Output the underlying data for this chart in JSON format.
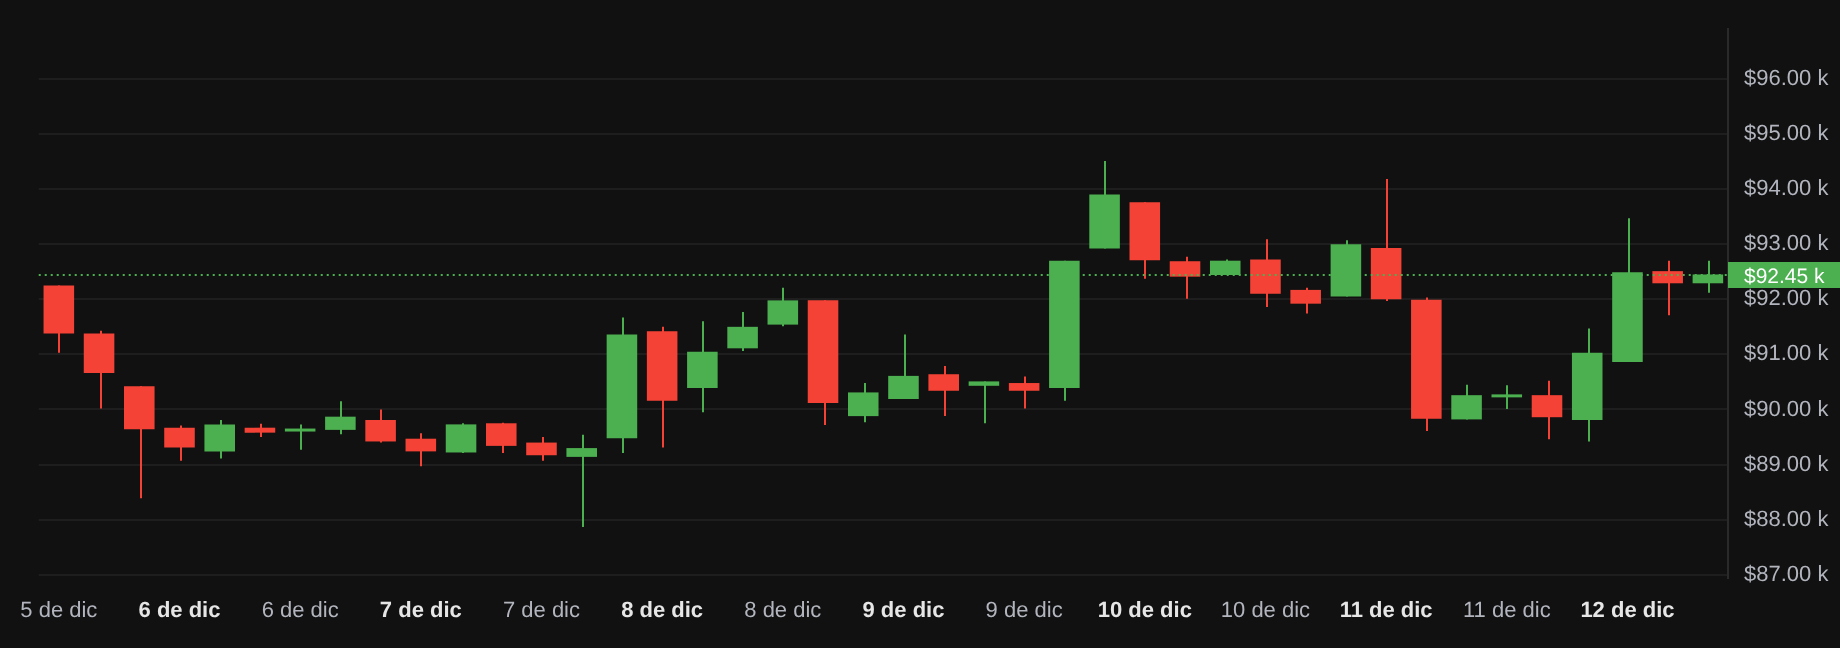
{
  "chart_data": {
    "type": "candlestick",
    "categories": [
      "5 de dic",
      null,
      null,
      "6 de dic",
      null,
      null,
      "6 de dic",
      null,
      null,
      "7 de dic",
      null,
      null,
      "7 de dic",
      null,
      null,
      "8 de dic",
      null,
      null,
      "8 de dic",
      null,
      null,
      "9 de dic",
      null,
      null,
      "9 de dic",
      null,
      null,
      "10 de dic",
      null,
      null,
      "10 de dic",
      null,
      null,
      "11 de dic",
      null,
      null,
      "11 de dic",
      null,
      null,
      "12 de dic",
      null,
      null
    ],
    "ohlc": [
      [
        92.25,
        92.25,
        91.03,
        91.38
      ],
      [
        91.38,
        91.43,
        90.02,
        90.66
      ],
      [
        90.42,
        90.42,
        88.39,
        89.64
      ],
      [
        89.67,
        89.71,
        89.07,
        89.31
      ],
      [
        89.24,
        89.81,
        89.11,
        89.73
      ],
      [
        89.67,
        89.74,
        89.5,
        89.58
      ],
      [
        89.6,
        89.73,
        89.27,
        89.64
      ],
      [
        89.63,
        90.15,
        89.55,
        89.87
      ],
      [
        89.81,
        90.0,
        89.4,
        89.42
      ],
      [
        89.47,
        89.57,
        88.97,
        89.24
      ],
      [
        89.22,
        89.75,
        89.21,
        89.73
      ],
      [
        89.75,
        89.76,
        89.21,
        89.34
      ],
      [
        89.4,
        89.5,
        89.07,
        89.17
      ],
      [
        89.14,
        89.54,
        87.87,
        89.3
      ],
      [
        89.48,
        91.67,
        89.21,
        91.36
      ],
      [
        91.42,
        91.5,
        89.31,
        90.16
      ],
      [
        90.39,
        91.6,
        89.95,
        91.05
      ],
      [
        91.11,
        91.77,
        91.06,
        91.5
      ],
      [
        91.54,
        92.21,
        91.51,
        91.98
      ],
      [
        91.98,
        91.98,
        89.72,
        90.12
      ],
      [
        89.88,
        90.48,
        89.77,
        90.31
      ],
      [
        90.19,
        91.36,
        90.19,
        90.61
      ],
      [
        90.64,
        90.79,
        89.88,
        90.34
      ],
      [
        90.43,
        90.51,
        89.75,
        90.51
      ],
      [
        90.48,
        90.6,
        90.02,
        90.34
      ],
      [
        90.39,
        92.7,
        90.16,
        92.7
      ],
      [
        92.92,
        94.51,
        92.92,
        93.9
      ],
      [
        93.76,
        93.76,
        92.37,
        92.71
      ],
      [
        92.69,
        92.77,
        92.01,
        92.41
      ],
      [
        92.44,
        92.72,
        92.44,
        92.7
      ],
      [
        92.72,
        93.09,
        91.86,
        92.1
      ],
      [
        92.17,
        92.21,
        91.74,
        91.92
      ],
      [
        92.05,
        93.07,
        92.05,
        93.0
      ],
      [
        92.93,
        94.18,
        91.97,
        92.0
      ],
      [
        91.99,
        92.03,
        89.61,
        89.83
      ],
      [
        89.82,
        90.45,
        89.82,
        90.26
      ],
      [
        90.22,
        90.44,
        90.01,
        90.27
      ],
      [
        90.26,
        90.52,
        89.46,
        89.86
      ],
      [
        89.81,
        91.47,
        89.42,
        91.03
      ],
      [
        90.86,
        93.47,
        90.86,
        92.49
      ],
      [
        92.51,
        92.7,
        91.71,
        92.29
      ],
      [
        92.29,
        92.7,
        92.12,
        92.45
      ]
    ],
    "colors": [
      "#f44336",
      "#f44336",
      "#f44336",
      "#f44336",
      "#4caf50",
      "#f44336",
      "#4caf50",
      "#4caf50",
      "#f44336",
      "#f44336",
      "#4caf50",
      "#f44336",
      "#f44336",
      "#4caf50",
      "#4caf50",
      "#f44336",
      "#4caf50",
      "#4caf50",
      "#4caf50",
      "#f44336",
      "#4caf50",
      "#4caf50",
      "#f44336",
      "#4caf50",
      "#f44336",
      "#4caf50",
      "#4caf50",
      "#f44336",
      "#f44336",
      "#4caf50",
      "#f44336",
      "#f44336",
      "#4caf50",
      "#f44336",
      "#f44336",
      "#4caf50",
      "#4caf50",
      "#f44336",
      "#4caf50",
      "#4caf50",
      "#f44336",
      "#4caf50"
    ],
    "ylim": [
      86.95,
      96.9
    ],
    "yticks": [
      {
        "value": 87,
        "label": "$87.00 k"
      },
      {
        "value": 88,
        "label": "$88.00 k"
      },
      {
        "value": 89,
        "label": "$89.00 k"
      },
      {
        "value": 90,
        "label": "$90.00 k"
      },
      {
        "value": 91,
        "label": "$91.00 k"
      },
      {
        "value": 92,
        "label": "$92.00 k"
      },
      {
        "value": 93,
        "label": "$93.00 k"
      },
      {
        "value": 94,
        "label": "$94.00 k"
      },
      {
        "value": 95,
        "label": "$95.00 k"
      },
      {
        "value": 96,
        "label": "$96.00 k"
      }
    ],
    "grid": "y",
    "ref_lines": [
      {
        "axis": "y",
        "value": 92.45,
        "label": "$92.45 k",
        "color": "#4caf50",
        "line_style": "dotted"
      }
    ]
  }
}
